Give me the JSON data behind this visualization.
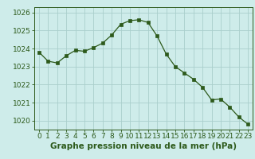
{
  "x": [
    0,
    1,
    2,
    3,
    4,
    5,
    6,
    7,
    8,
    9,
    10,
    11,
    12,
    13,
    14,
    15,
    16,
    17,
    18,
    19,
    20,
    21,
    22,
    23
  ],
  "y": [
    1023.8,
    1023.3,
    1023.2,
    1023.6,
    1023.9,
    1023.85,
    1024.05,
    1024.3,
    1024.75,
    1025.35,
    1025.55,
    1025.6,
    1025.45,
    1024.7,
    1023.7,
    1023.0,
    1022.65,
    1022.3,
    1021.85,
    1021.15,
    1021.2,
    1020.75,
    1020.2,
    1019.8
  ],
  "xlabel": "Graphe pression niveau de la mer (hPa)",
  "ylim_min": 1019.5,
  "ylim_max": 1026.3,
  "yticks": [
    1020,
    1021,
    1022,
    1023,
    1024,
    1025,
    1026
  ],
  "xticks": [
    0,
    1,
    2,
    3,
    4,
    5,
    6,
    7,
    8,
    9,
    10,
    11,
    12,
    13,
    14,
    15,
    16,
    17,
    18,
    19,
    20,
    21,
    22,
    23
  ],
  "line_color": "#2d5a1b",
  "marker_color": "#2d5a1b",
  "bg_color": "#ceecea",
  "grid_color": "#aacfcc",
  "border_color": "#2d5a1b",
  "xlabel_color": "#2d5a1b",
  "tick_label_color": "#2d5a1b",
  "font_size_xlabel": 7.5,
  "font_size_ticks": 6.5
}
